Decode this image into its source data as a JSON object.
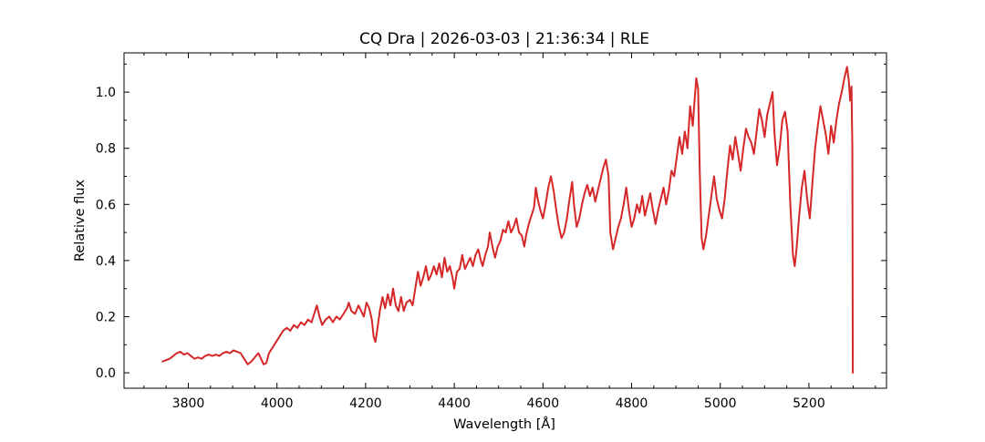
{
  "chart_data": {
    "type": "line",
    "title": "CQ Dra | 2026-03-03 | 21:36:34 | RLE",
    "xlabel": "Wavelength [Å]",
    "ylabel": "Relative flux",
    "xlim": [
      3655,
      5375
    ],
    "ylim": [
      -0.055,
      1.14
    ],
    "x_ticks": [
      3800,
      4000,
      4200,
      4400,
      4600,
      4800,
      5000,
      5200
    ],
    "x_tick_labels": [
      "3800",
      "4000",
      "4200",
      "4400",
      "4600",
      "4800",
      "5000",
      "5200"
    ],
    "y_ticks": [
      0.0,
      0.2,
      0.4,
      0.6,
      0.8,
      1.0
    ],
    "y_tick_labels": [
      "0.0",
      "0.2",
      "0.4",
      "0.6",
      "0.8",
      "1.0"
    ],
    "grid": false,
    "series": [
      {
        "color": "#d62728",
        "points": [
          [
            3742,
            0.04
          ],
          [
            3750,
            0.045
          ],
          [
            3758,
            0.05
          ],
          [
            3766,
            0.06
          ],
          [
            3774,
            0.07
          ],
          [
            3782,
            0.075
          ],
          [
            3790,
            0.065
          ],
          [
            3798,
            0.07
          ],
          [
            3806,
            0.06
          ],
          [
            3814,
            0.05
          ],
          [
            3822,
            0.055
          ],
          [
            3830,
            0.05
          ],
          [
            3838,
            0.06
          ],
          [
            3846,
            0.065
          ],
          [
            3854,
            0.06
          ],
          [
            3862,
            0.065
          ],
          [
            3870,
            0.06
          ],
          [
            3878,
            0.07
          ],
          [
            3886,
            0.075
          ],
          [
            3894,
            0.07
          ],
          [
            3902,
            0.08
          ],
          [
            3910,
            0.075
          ],
          [
            3918,
            0.07
          ],
          [
            3926,
            0.05
          ],
          [
            3934,
            0.03
          ],
          [
            3942,
            0.04
          ],
          [
            3950,
            0.055
          ],
          [
            3958,
            0.07
          ],
          [
            3964,
            0.05
          ],
          [
            3970,
            0.03
          ],
          [
            3976,
            0.035
          ],
          [
            3982,
            0.07
          ],
          [
            3990,
            0.09
          ],
          [
            3998,
            0.11
          ],
          [
            4006,
            0.13
          ],
          [
            4014,
            0.15
          ],
          [
            4022,
            0.16
          ],
          [
            4030,
            0.15
          ],
          [
            4038,
            0.17
          ],
          [
            4046,
            0.16
          ],
          [
            4054,
            0.18
          ],
          [
            4062,
            0.17
          ],
          [
            4070,
            0.19
          ],
          [
            4078,
            0.18
          ],
          [
            4086,
            0.22
          ],
          [
            4090,
            0.24
          ],
          [
            4096,
            0.2
          ],
          [
            4102,
            0.17
          ],
          [
            4110,
            0.19
          ],
          [
            4118,
            0.2
          ],
          [
            4126,
            0.18
          ],
          [
            4134,
            0.2
          ],
          [
            4142,
            0.19
          ],
          [
            4150,
            0.21
          ],
          [
            4158,
            0.23
          ],
          [
            4162,
            0.25
          ],
          [
            4168,
            0.22
          ],
          [
            4176,
            0.21
          ],
          [
            4184,
            0.24
          ],
          [
            4190,
            0.22
          ],
          [
            4196,
            0.2
          ],
          [
            4202,
            0.25
          ],
          [
            4208,
            0.23
          ],
          [
            4214,
            0.19
          ],
          [
            4218,
            0.13
          ],
          [
            4222,
            0.11
          ],
          [
            4226,
            0.15
          ],
          [
            4232,
            0.22
          ],
          [
            4238,
            0.27
          ],
          [
            4244,
            0.23
          ],
          [
            4250,
            0.28
          ],
          [
            4256,
            0.24
          ],
          [
            4262,
            0.3
          ],
          [
            4268,
            0.24
          ],
          [
            4274,
            0.22
          ],
          [
            4280,
            0.27
          ],
          [
            4286,
            0.22
          ],
          [
            4292,
            0.25
          ],
          [
            4300,
            0.26
          ],
          [
            4306,
            0.24
          ],
          [
            4312,
            0.3
          ],
          [
            4318,
            0.36
          ],
          [
            4324,
            0.31
          ],
          [
            4330,
            0.34
          ],
          [
            4336,
            0.38
          ],
          [
            4342,
            0.33
          ],
          [
            4348,
            0.35
          ],
          [
            4354,
            0.38
          ],
          [
            4360,
            0.35
          ],
          [
            4366,
            0.39
          ],
          [
            4372,
            0.34
          ],
          [
            4378,
            0.41
          ],
          [
            4384,
            0.36
          ],
          [
            4390,
            0.38
          ],
          [
            4396,
            0.34
          ],
          [
            4400,
            0.3
          ],
          [
            4406,
            0.36
          ],
          [
            4412,
            0.37
          ],
          [
            4418,
            0.42
          ],
          [
            4424,
            0.37
          ],
          [
            4430,
            0.39
          ],
          [
            4436,
            0.41
          ],
          [
            4442,
            0.38
          ],
          [
            4448,
            0.42
          ],
          [
            4454,
            0.44
          ],
          [
            4460,
            0.4
          ],
          [
            4464,
            0.38
          ],
          [
            4470,
            0.42
          ],
          [
            4476,
            0.45
          ],
          [
            4480,
            0.5
          ],
          [
            4486,
            0.45
          ],
          [
            4492,
            0.41
          ],
          [
            4498,
            0.45
          ],
          [
            4504,
            0.47
          ],
          [
            4510,
            0.51
          ],
          [
            4516,
            0.5
          ],
          [
            4522,
            0.54
          ],
          [
            4528,
            0.5
          ],
          [
            4534,
            0.52
          ],
          [
            4540,
            0.55
          ],
          [
            4546,
            0.5
          ],
          [
            4552,
            0.49
          ],
          [
            4558,
            0.45
          ],
          [
            4562,
            0.49
          ],
          [
            4568,
            0.53
          ],
          [
            4574,
            0.56
          ],
          [
            4580,
            0.59
          ],
          [
            4584,
            0.66
          ],
          [
            4588,
            0.62
          ],
          [
            4594,
            0.58
          ],
          [
            4600,
            0.55
          ],
          [
            4606,
            0.6
          ],
          [
            4612,
            0.66
          ],
          [
            4618,
            0.7
          ],
          [
            4624,
            0.65
          ],
          [
            4630,
            0.58
          ],
          [
            4636,
            0.52
          ],
          [
            4642,
            0.48
          ],
          [
            4648,
            0.5
          ],
          [
            4654,
            0.55
          ],
          [
            4660,
            0.62
          ],
          [
            4666,
            0.68
          ],
          [
            4670,
            0.6
          ],
          [
            4676,
            0.52
          ],
          [
            4682,
            0.55
          ],
          [
            4688,
            0.6
          ],
          [
            4694,
            0.64
          ],
          [
            4700,
            0.67
          ],
          [
            4706,
            0.63
          ],
          [
            4712,
            0.66
          ],
          [
            4718,
            0.61
          ],
          [
            4724,
            0.65
          ],
          [
            4730,
            0.69
          ],
          [
            4736,
            0.73
          ],
          [
            4742,
            0.76
          ],
          [
            4748,
            0.7
          ],
          [
            4752,
            0.5
          ],
          [
            4758,
            0.44
          ],
          [
            4764,
            0.48
          ],
          [
            4770,
            0.52
          ],
          [
            4776,
            0.55
          ],
          [
            4782,
            0.6
          ],
          [
            4788,
            0.66
          ],
          [
            4794,
            0.58
          ],
          [
            4800,
            0.52
          ],
          [
            4806,
            0.55
          ],
          [
            4812,
            0.6
          ],
          [
            4818,
            0.57
          ],
          [
            4824,
            0.63
          ],
          [
            4830,
            0.56
          ],
          [
            4836,
            0.6
          ],
          [
            4842,
            0.64
          ],
          [
            4848,
            0.58
          ],
          [
            4854,
            0.53
          ],
          [
            4860,
            0.58
          ],
          [
            4866,
            0.62
          ],
          [
            4872,
            0.66
          ],
          [
            4878,
            0.6
          ],
          [
            4884,
            0.65
          ],
          [
            4890,
            0.72
          ],
          [
            4896,
            0.7
          ],
          [
            4902,
            0.77
          ],
          [
            4908,
            0.84
          ],
          [
            4914,
            0.78
          ],
          [
            4920,
            0.86
          ],
          [
            4926,
            0.8
          ],
          [
            4932,
            0.95
          ],
          [
            4938,
            0.88
          ],
          [
            4942,
            0.97
          ],
          [
            4946,
            1.05
          ],
          [
            4950,
            1.01
          ],
          [
            4954,
            0.7
          ],
          [
            4958,
            0.48
          ],
          [
            4962,
            0.44
          ],
          [
            4968,
            0.49
          ],
          [
            4974,
            0.56
          ],
          [
            4980,
            0.63
          ],
          [
            4986,
            0.7
          ],
          [
            4992,
            0.62
          ],
          [
            4998,
            0.58
          ],
          [
            5004,
            0.55
          ],
          [
            5010,
            0.62
          ],
          [
            5016,
            0.72
          ],
          [
            5022,
            0.81
          ],
          [
            5028,
            0.76
          ],
          [
            5034,
            0.84
          ],
          [
            5040,
            0.78
          ],
          [
            5046,
            0.72
          ],
          [
            5052,
            0.8
          ],
          [
            5058,
            0.87
          ],
          [
            5064,
            0.84
          ],
          [
            5070,
            0.82
          ],
          [
            5076,
            0.78
          ],
          [
            5082,
            0.86
          ],
          [
            5088,
            0.94
          ],
          [
            5094,
            0.9
          ],
          [
            5100,
            0.84
          ],
          [
            5106,
            0.92
          ],
          [
            5112,
            0.96
          ],
          [
            5118,
            1.0
          ],
          [
            5122,
            0.86
          ],
          [
            5128,
            0.74
          ],
          [
            5134,
            0.8
          ],
          [
            5140,
            0.9
          ],
          [
            5146,
            0.93
          ],
          [
            5152,
            0.86
          ],
          [
            5158,
            0.6
          ],
          [
            5164,
            0.42
          ],
          [
            5168,
            0.38
          ],
          [
            5172,
            0.44
          ],
          [
            5178,
            0.56
          ],
          [
            5184,
            0.66
          ],
          [
            5190,
            0.72
          ],
          [
            5196,
            0.62
          ],
          [
            5202,
            0.55
          ],
          [
            5208,
            0.68
          ],
          [
            5214,
            0.8
          ],
          [
            5220,
            0.88
          ],
          [
            5226,
            0.95
          ],
          [
            5232,
            0.9
          ],
          [
            5238,
            0.85
          ],
          [
            5244,
            0.78
          ],
          [
            5250,
            0.88
          ],
          [
            5256,
            0.82
          ],
          [
            5262,
            0.9
          ],
          [
            5268,
            0.96
          ],
          [
            5274,
            1.0
          ],
          [
            5280,
            1.05
          ],
          [
            5286,
            1.09
          ],
          [
            5290,
            1.04
          ],
          [
            5293,
            0.97
          ],
          [
            5296,
            1.02
          ],
          [
            5298,
            0.8
          ],
          [
            5299,
            0.0
          ]
        ]
      }
    ]
  }
}
